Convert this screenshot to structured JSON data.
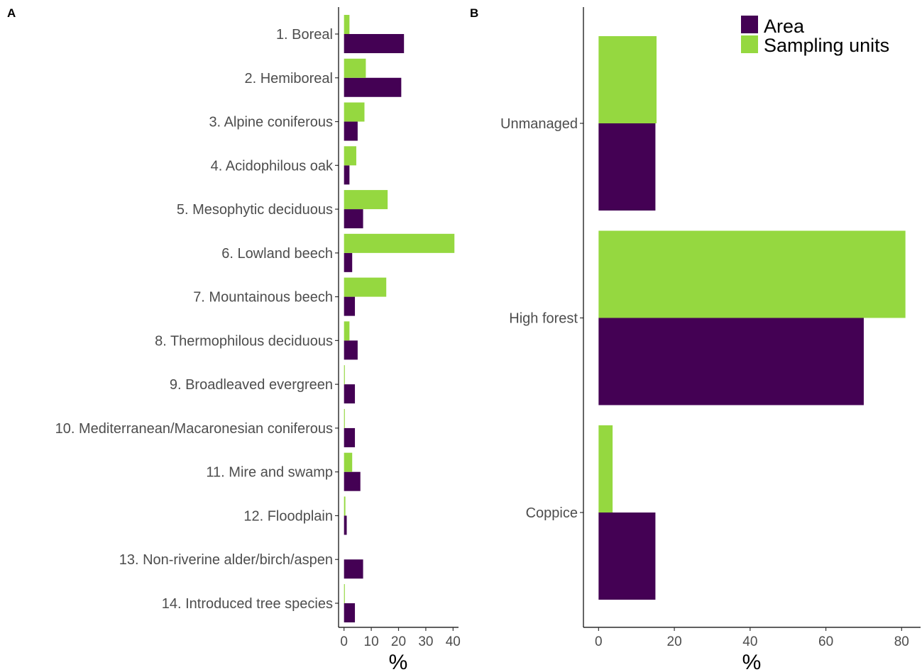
{
  "chart_data": [
    {
      "panel": "A",
      "type": "bar",
      "orientation": "horizontal",
      "categories": [
        "1. Boreal",
        "2. Hemiboreal",
        "3. Alpine coniferous",
        "4. Acidophilous oak",
        "5. Mesophytic deciduous",
        "6. Lowland beech",
        "7. Mountainous beech",
        "8. Thermophilous deciduous",
        "9. Broadleaved evergreen",
        "10. Mediterranean/Macaronesian coniferous",
        "11. Mire and swamp",
        "12. Floodplain",
        "13. Non-riverine alder/birch/aspen",
        "14. Introduced tree species"
      ],
      "series": [
        {
          "name": "Area",
          "color": "#440154",
          "values": [
            22,
            21,
            5,
            2,
            7,
            3,
            4,
            5,
            4,
            4,
            6,
            1,
            7,
            4
          ]
        },
        {
          "name": "Sampling units",
          "color": "#95d840",
          "values": [
            2,
            8,
            7.5,
            4.5,
            16,
            40.5,
            15.5,
            2,
            0.3,
            0.3,
            3,
            0.5,
            0,
            0.3
          ]
        }
      ],
      "xticks": [
        "0",
        "10",
        "20",
        "30",
        "40"
      ],
      "xlim": [
        -2,
        42
      ],
      "xlabel": "%",
      "ylabel": "",
      "grid": false
    },
    {
      "panel": "B",
      "type": "bar",
      "orientation": "horizontal",
      "categories": [
        "Unmanaged",
        "High forest",
        "Coppice"
      ],
      "series": [
        {
          "name": "Area",
          "color": "#440154",
          "values": [
            15,
            70,
            15
          ]
        },
        {
          "name": "Sampling units",
          "color": "#95d840",
          "values": [
            15.3,
            81,
            3.7
          ]
        }
      ],
      "xticks": [
        "0",
        "20",
        "40",
        "60",
        "80"
      ],
      "xlim": [
        -4,
        85
      ],
      "xlabel": "%",
      "ylabel": "",
      "grid": false,
      "legend": {
        "placement": "top-right",
        "entries": [
          "Area",
          "Sampling units"
        ]
      }
    }
  ]
}
